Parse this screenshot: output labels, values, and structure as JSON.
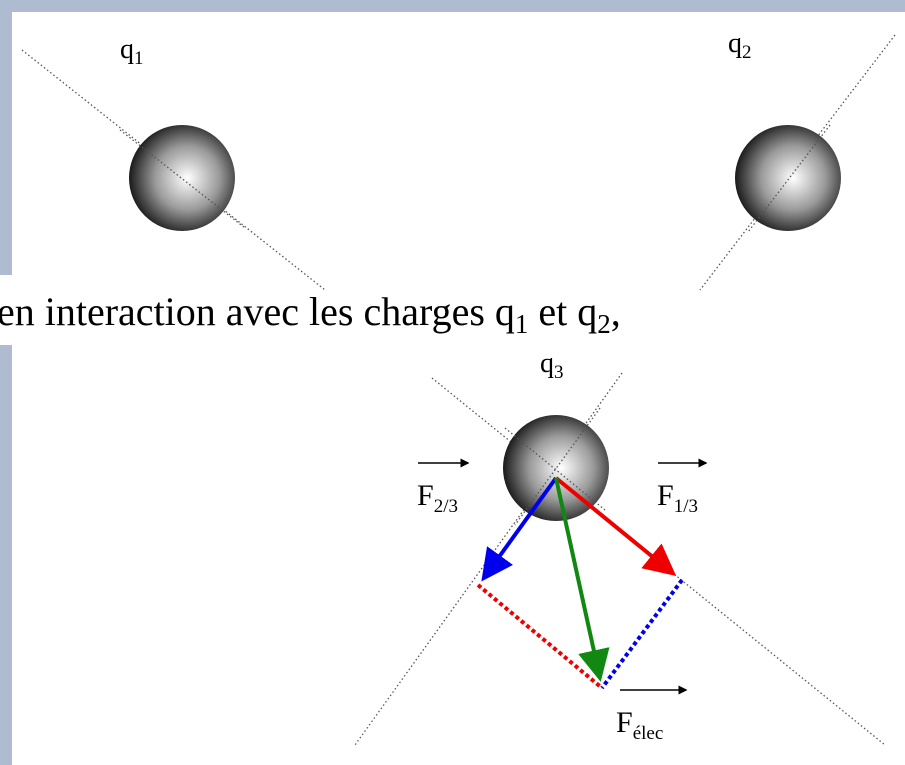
{
  "charges": [
    {
      "base": "q",
      "sub": "1"
    },
    {
      "base": "q",
      "sub": "2"
    },
    {
      "base": "q",
      "sub": "3"
    }
  ],
  "sentence": [
    "en interaction avec les charges q",
    "1",
    " et q",
    "2",
    ","
  ],
  "forces": [
    {
      "base": "F",
      "sub": "2/3"
    },
    {
      "base": "F",
      "sub": "1/3"
    },
    {
      "base": "F",
      "sub": "élec"
    }
  ]
}
